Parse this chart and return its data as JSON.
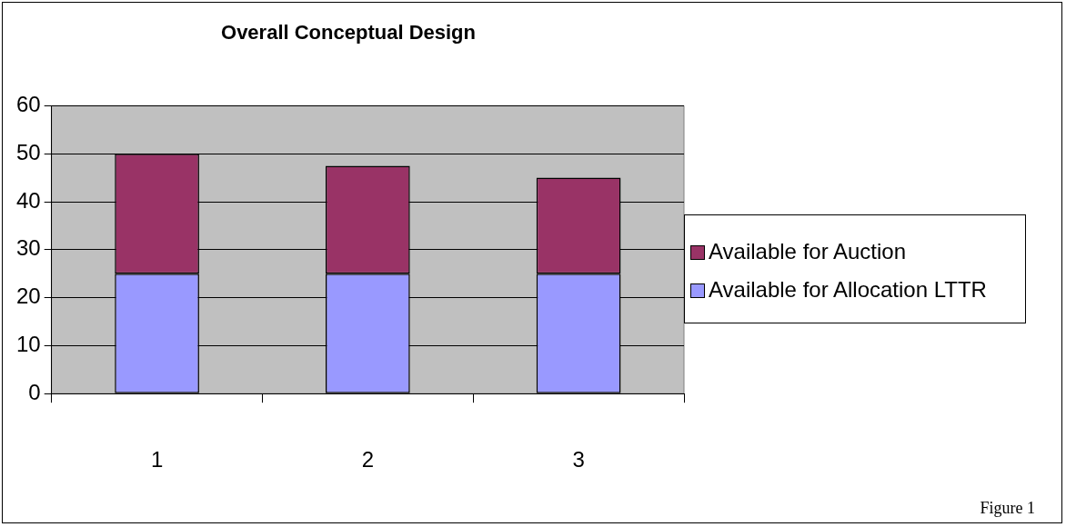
{
  "chart_data": {
    "type": "bar",
    "title": "Overall Conceptual Design",
    "categories": [
      "1",
      "2",
      "3"
    ],
    "stacked": true,
    "series": [
      {
        "name": "Available for Allocation LTTR",
        "color": "#9999ff",
        "values": [
          25,
          25,
          25
        ]
      },
      {
        "name": "Available for Auction",
        "color": "#993366",
        "values": [
          25,
          22.5,
          20
        ]
      }
    ],
    "ylim": [
      0,
      60
    ],
    "yticks": [
      0,
      10,
      20,
      30,
      40,
      50,
      60
    ],
    "grid": "y",
    "legend": "right",
    "annotations": [
      "Figure 1"
    ]
  }
}
